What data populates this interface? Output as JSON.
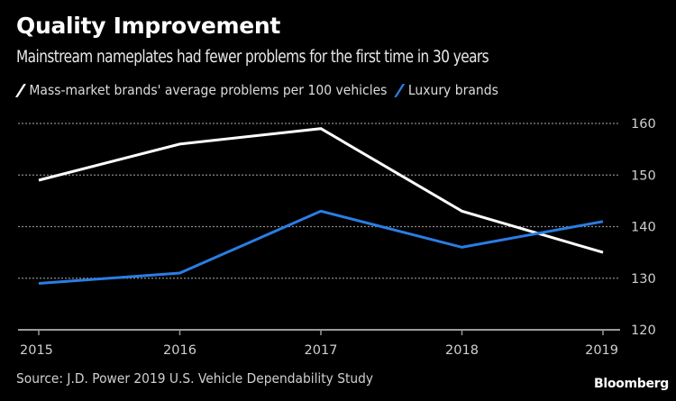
{
  "header": {
    "title": "Quality Improvement",
    "subtitle": "Mainstream nameplates had fewer problems for the first time in 30 years"
  },
  "footer": {
    "source": "Source: J.D. Power 2019 U.S. Vehicle Dependability Study",
    "logo": "Bloomberg"
  },
  "chart_data": {
    "type": "line",
    "title": "Quality Improvement",
    "subtitle": "Mainstream nameplates had fewer problems for the first time in 30 years",
    "xlabel": "",
    "ylabel": "",
    "x": [
      "2015",
      "2016",
      "2017",
      "2018",
      "2019"
    ],
    "ylim": [
      120,
      160
    ],
    "yticks": [
      120,
      130,
      140,
      150,
      160
    ],
    "y_axis_side": "right",
    "grid": true,
    "legend_position": "top-left",
    "series": [
      {
        "name": "Mass-market brands' average problems per 100 vehicles",
        "color": "#ffffff",
        "values": [
          149,
          156,
          159,
          143,
          135
        ]
      },
      {
        "name": "Luxury brands",
        "color": "#2b7de3",
        "values": [
          129,
          131,
          143,
          136,
          141
        ]
      }
    ]
  }
}
